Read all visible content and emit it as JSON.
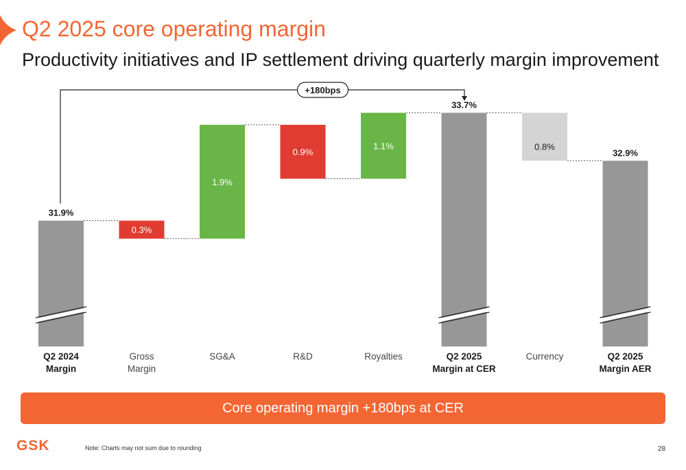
{
  "slide": {
    "title": "Q2 2025 core operating margin",
    "subtitle": "Productivity initiatives and IP settlement driving quarterly margin improvement",
    "banner": "Core operating margin +180bps at CER",
    "logo": "GSK",
    "footnote": "Note: Charts may not sum due to rounding",
    "page_number": "28"
  },
  "colors": {
    "accent": "#f36633",
    "total": "#979797",
    "increase": "#6ab547",
    "decrease": "#e03c31",
    "currency": "#d4d4d4"
  },
  "chart_data": {
    "type": "bar",
    "subtype": "waterfall",
    "unit": "%",
    "categories": [
      [
        "Q2 2024",
        "Margin"
      ],
      [
        "Gross",
        "Margin"
      ],
      [
        "SG&A"
      ],
      [
        "R&D"
      ],
      [
        "Royalties"
      ],
      [
        "Q2 2025",
        "Margin at CER"
      ],
      [
        "Currency"
      ],
      [
        "Q2 2025",
        "Margin AER"
      ]
    ],
    "bars": [
      {
        "kind": "total",
        "value": 31.9,
        "label": "31.9%",
        "bold_category": true,
        "axis_break": true
      },
      {
        "kind": "decrease",
        "value": 0.3,
        "label": "0.3%",
        "bold_category": false
      },
      {
        "kind": "increase",
        "value": 1.9,
        "label": "1.9%",
        "bold_category": false
      },
      {
        "kind": "decrease",
        "value": 0.9,
        "label": "0.9%",
        "bold_category": false
      },
      {
        "kind": "increase",
        "value": 1.1,
        "label": "1.1%",
        "bold_category": false
      },
      {
        "kind": "total",
        "value": 33.7,
        "label": "33.7%",
        "bold_category": true,
        "axis_break": true
      },
      {
        "kind": "currency",
        "value": -0.8,
        "label": "0.8%",
        "bold_category": false
      },
      {
        "kind": "total",
        "value": 32.9,
        "label": "32.9%",
        "bold_category": true,
        "axis_break": true
      }
    ],
    "bracket": {
      "from_index": 0,
      "to_index": 5,
      "label": "+180bps"
    },
    "axis_min_visible": 29.8,
    "axis_max_visible": 34.3
  }
}
